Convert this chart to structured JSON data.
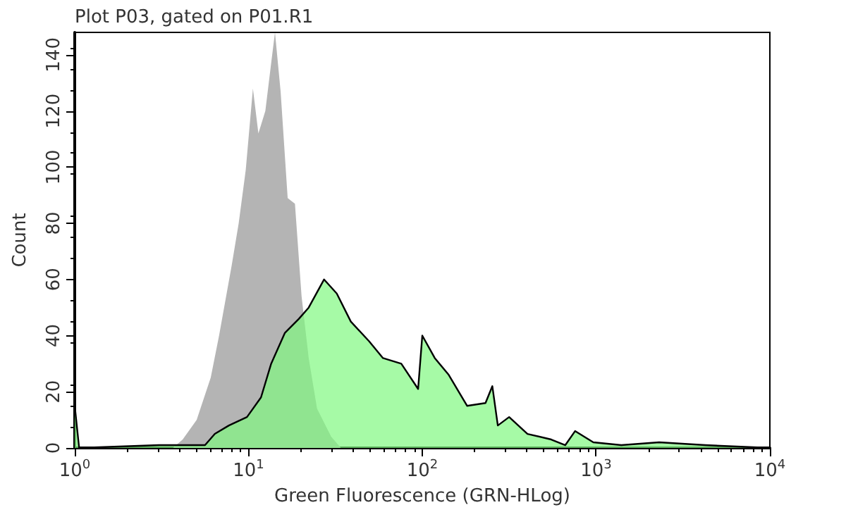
{
  "chart_data": {
    "type": "area",
    "title": "Plot P03, gated on P01.R1",
    "xlabel": "Green Fluorescence (GRN-HLog)",
    "ylabel": "Count",
    "log": "x",
    "xlim": [
      1,
      10000
    ],
    "xticks": [
      {
        "value": 1,
        "label": "10$^{0}$"
      },
      {
        "value": 10,
        "label": "10$^{1}$"
      },
      {
        "value": 100,
        "label": "10$^{2}$"
      },
      {
        "value": 1000,
        "label": "10$^{3}$"
      },
      {
        "value": 10000,
        "label": "10$^{4}$"
      }
    ],
    "ylim": [
      0,
      148
    ],
    "yticks": [
      0,
      20,
      40,
      60,
      80,
      100,
      120,
      140
    ],
    "grid": false,
    "series": [
      {
        "color": "#b4b4b4",
        "x": [
          3.67,
          4.18,
          5.03,
          6.06,
          6.77,
          8.0,
          8.78,
          9.64,
          10.6,
          11.4,
          12.5,
          13.5,
          14.2,
          15.3,
          16.8,
          18.5,
          20.2,
          22.2,
          24.8,
          29.9,
          34.0
        ],
        "values": [
          0,
          3,
          10,
          25,
          40,
          65,
          80,
          99,
          128,
          112,
          120,
          137,
          148,
          127,
          89,
          87,
          54,
          32,
          14,
          4,
          0
        ]
      },
      {
        "color": "#80f880",
        "x": [
          1,
          1.06,
          3.05,
          5.62,
          6.4,
          7.71,
          9.8,
          11.8,
          13.5,
          16.2,
          19.5,
          22.2,
          27.2,
          32.2,
          38.8,
          49.4,
          59.4,
          75.7,
          94.6,
          100,
          118,
          142,
          181,
          231,
          253,
          272,
          316,
          403,
          552,
          665,
          757,
          964,
          1397,
          2306,
          4256,
          10000
        ],
        "values": [
          15,
          0,
          1,
          1,
          5,
          8,
          11,
          18,
          30,
          41,
          46,
          50,
          60,
          55,
          45,
          38,
          32,
          30,
          21,
          40,
          32,
          26,
          15,
          16,
          22,
          8,
          11,
          5,
          3,
          1,
          6,
          2,
          1,
          2,
          1,
          0
        ]
      }
    ]
  }
}
